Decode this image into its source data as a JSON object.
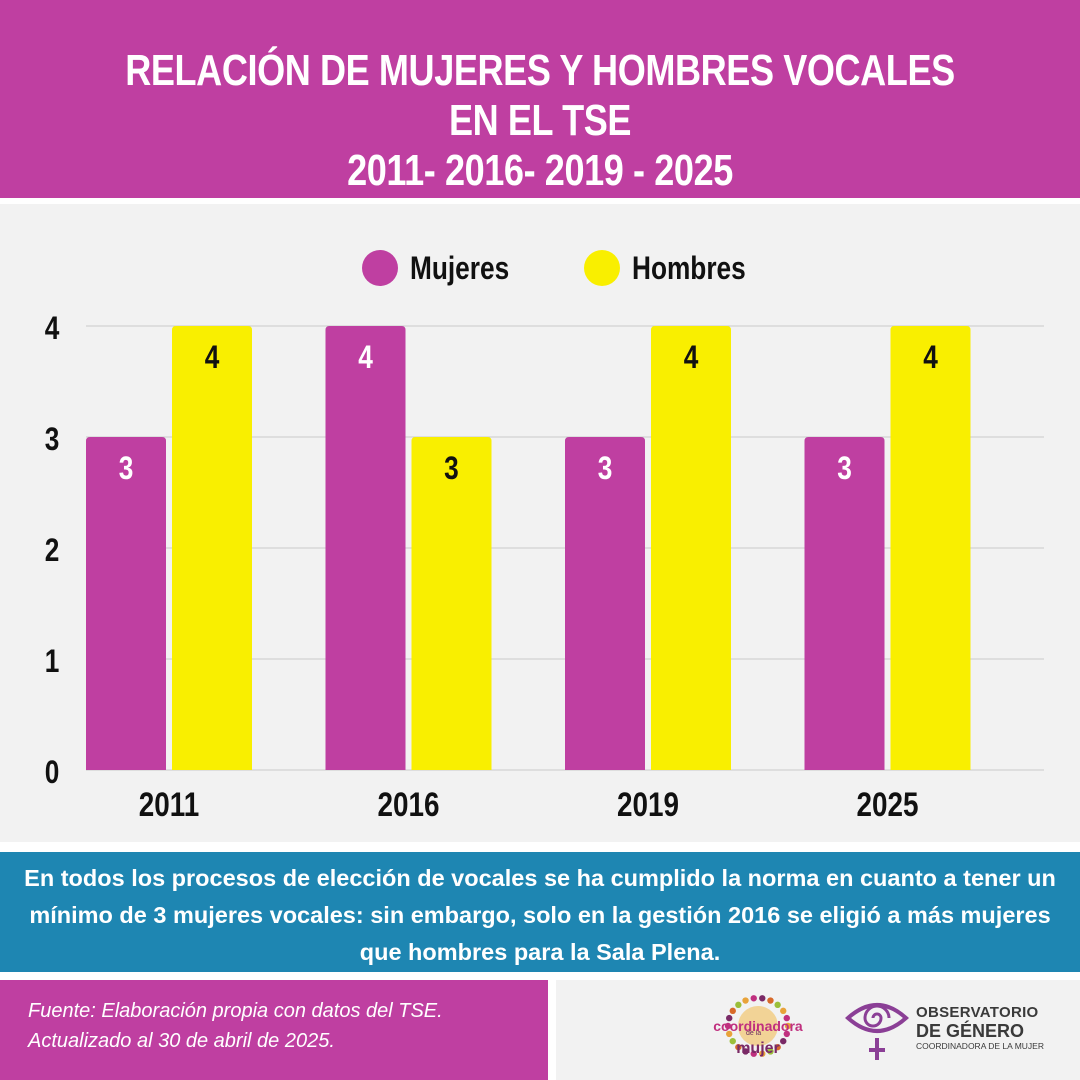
{
  "header": {
    "title_line1": "RELACIÓN DE MUJERES Y HOMBRES  VOCALES EN EL TSE",
    "title_line2": "2011- 2016- 2019 - 2025"
  },
  "colors": {
    "mujeres": "#bf3fa1",
    "hombres": "#f9ef00",
    "header_bg": "#bf3fa1",
    "note_bg": "#1e86b2"
  },
  "chart_data": {
    "type": "bar",
    "categories": [
      "2011",
      "2016",
      "2019",
      "2025"
    ],
    "series": [
      {
        "name": "Mujeres",
        "values": [
          3,
          4,
          3,
          3
        ],
        "color": "#bf3fa1",
        "label_color": "#ffffff"
      },
      {
        "name": "Hombres",
        "values": [
          4,
          3,
          4,
          4
        ],
        "color": "#f9ef00",
        "label_color": "#111111"
      }
    ],
    "yticks": [
      "0",
      "1",
      "2",
      "3",
      "4"
    ],
    "ylim": [
      0,
      4
    ],
    "grid": true,
    "legend_position": "top-center",
    "data_labels": true
  },
  "note": {
    "text": "En todos los procesos de elección de vocales se ha cumplido la norma en cuanto a tener un mínimo de 3 mujeres vocales: sin embargo, solo en la gestión 2016 se eligió a más mujeres que hombres para la Sala Plena."
  },
  "source": {
    "line1": "Fuente:  Elaboración propia con datos del  TSE.",
    "line2": "Actualizado al 30 de abril de 2025."
  },
  "logos": {
    "coordinadora": {
      "word1": "coordinadora",
      "small": "de la",
      "word2": "mujer",
      "icon": "coordinadora-sunburst-icon"
    },
    "observatorio": {
      "line1": "OBSERVATORIO",
      "line2": "DE GÉNERO",
      "line3": "COORDINADORA DE LA MUJER",
      "icon": "eye-venus-icon"
    }
  }
}
